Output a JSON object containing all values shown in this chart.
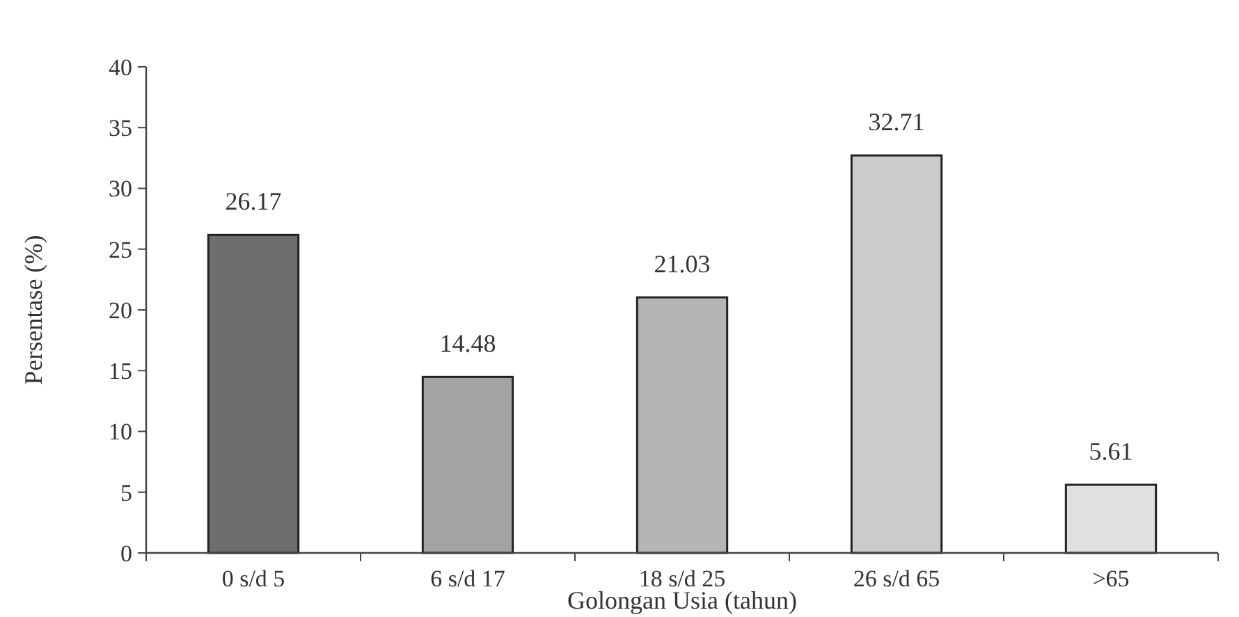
{
  "chart_data": {
    "type": "bar",
    "xlabel": "Golongan Usia (tahun)",
    "ylabel": "Persentase (%)",
    "categories": [
      "0 s/d 5",
      "6 s/d 17",
      "18 s/d 25",
      "26 s/d 65",
      ">65"
    ],
    "values": [
      26.17,
      14.48,
      21.03,
      32.71,
      5.61
    ],
    "colors": [
      "#6e6e6e",
      "#a3a3a3",
      "#b5b5b5",
      "#cbcbcb",
      "#e0e0e0"
    ],
    "ylim": [
      0,
      40
    ],
    "yticks": [
      0,
      5,
      10,
      15,
      20,
      25,
      30,
      35,
      40
    ],
    "data_labels": true,
    "grid": false
  }
}
